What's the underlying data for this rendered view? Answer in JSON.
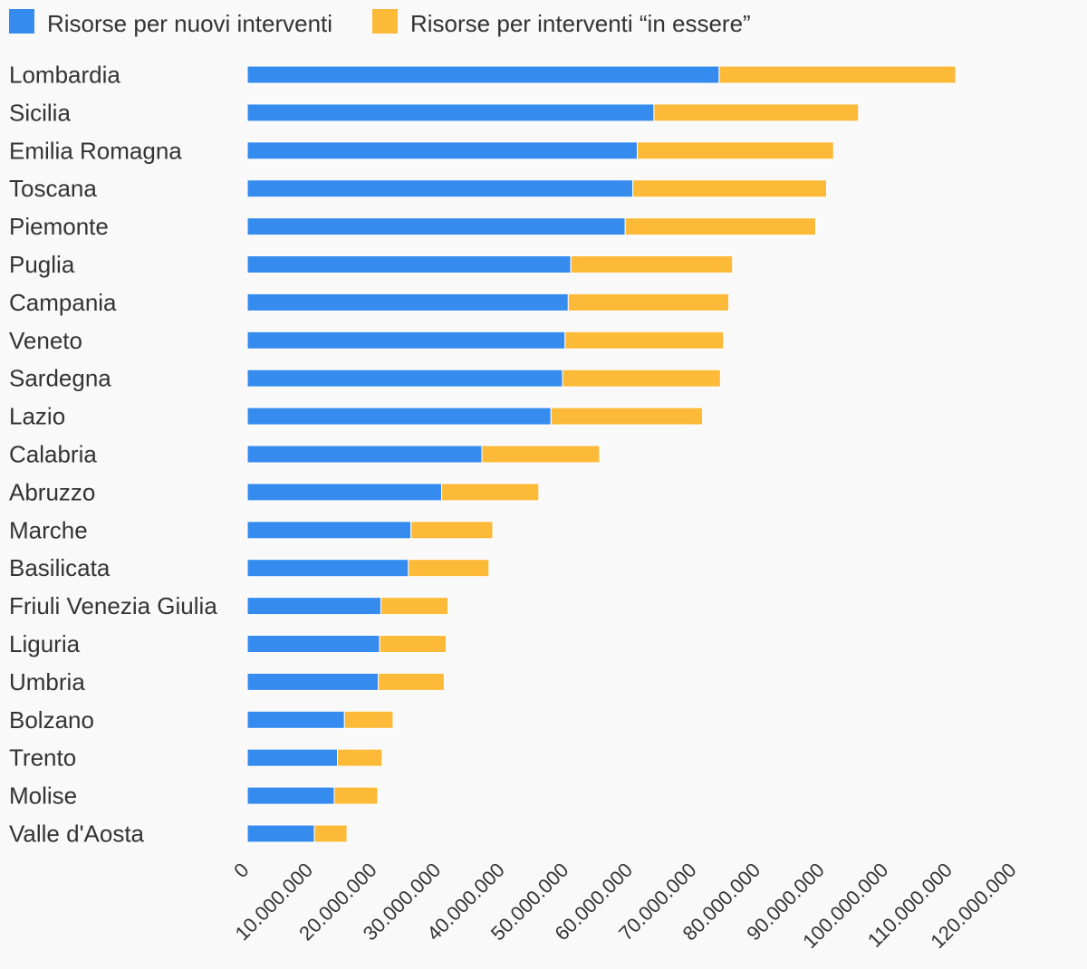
{
  "chart_data": {
    "type": "bar",
    "orientation": "horizontal",
    "stacked": true,
    "categories": [
      "Lombardia",
      "Sicilia",
      "Emilia Romagna",
      "Toscana",
      "Piemonte",
      "Puglia",
      "Campania",
      "Veneto",
      "Sardegna",
      "Lazio",
      "Calabria",
      "Abruzzo",
      "Marche",
      "Basilicata",
      "Friuli Venezia Giulia",
      "Liguria",
      "Umbria",
      "Bolzano",
      "Trento",
      "Molise",
      "Valle d'Aosta"
    ],
    "series": [
      {
        "name": "Risorse per nuovi interventi",
        "color": "#368bee",
        "values": [
          73800000,
          63600000,
          61000000,
          60300000,
          59100000,
          50600000,
          50200000,
          49700000,
          49300000,
          47500000,
          36700000,
          30400000,
          25600000,
          25200000,
          20900000,
          20700000,
          20500000,
          15200000,
          14100000,
          13600000,
          10500000
        ]
      },
      {
        "name": "Risorse per interventi “in essere”",
        "color": "#fdb938",
        "values": [
          37000000,
          32000000,
          30700000,
          30300000,
          29800000,
          25300000,
          25100000,
          24800000,
          24700000,
          23700000,
          18400000,
          15200000,
          12800000,
          12600000,
          10500000,
          10400000,
          10300000,
          7600000,
          7000000,
          6800000,
          5100000
        ]
      }
    ],
    "xlim": [
      0,
      120000000
    ],
    "xticks": [
      0,
      10000000,
      20000000,
      30000000,
      40000000,
      50000000,
      60000000,
      70000000,
      80000000,
      90000000,
      100000000,
      110000000,
      120000000
    ],
    "xtick_labels": [
      "0",
      "10.000.000",
      "20.000.000",
      "30.000.000",
      "40.000.000",
      "50.000.000",
      "60.000.000",
      "70.000.000",
      "80.000.000",
      "90.000.000",
      "100.000.000",
      "110.000.000",
      "120.000.000"
    ],
    "grid": false,
    "legend": "top-left",
    "title": "",
    "xlabel": "",
    "ylabel": ""
  }
}
